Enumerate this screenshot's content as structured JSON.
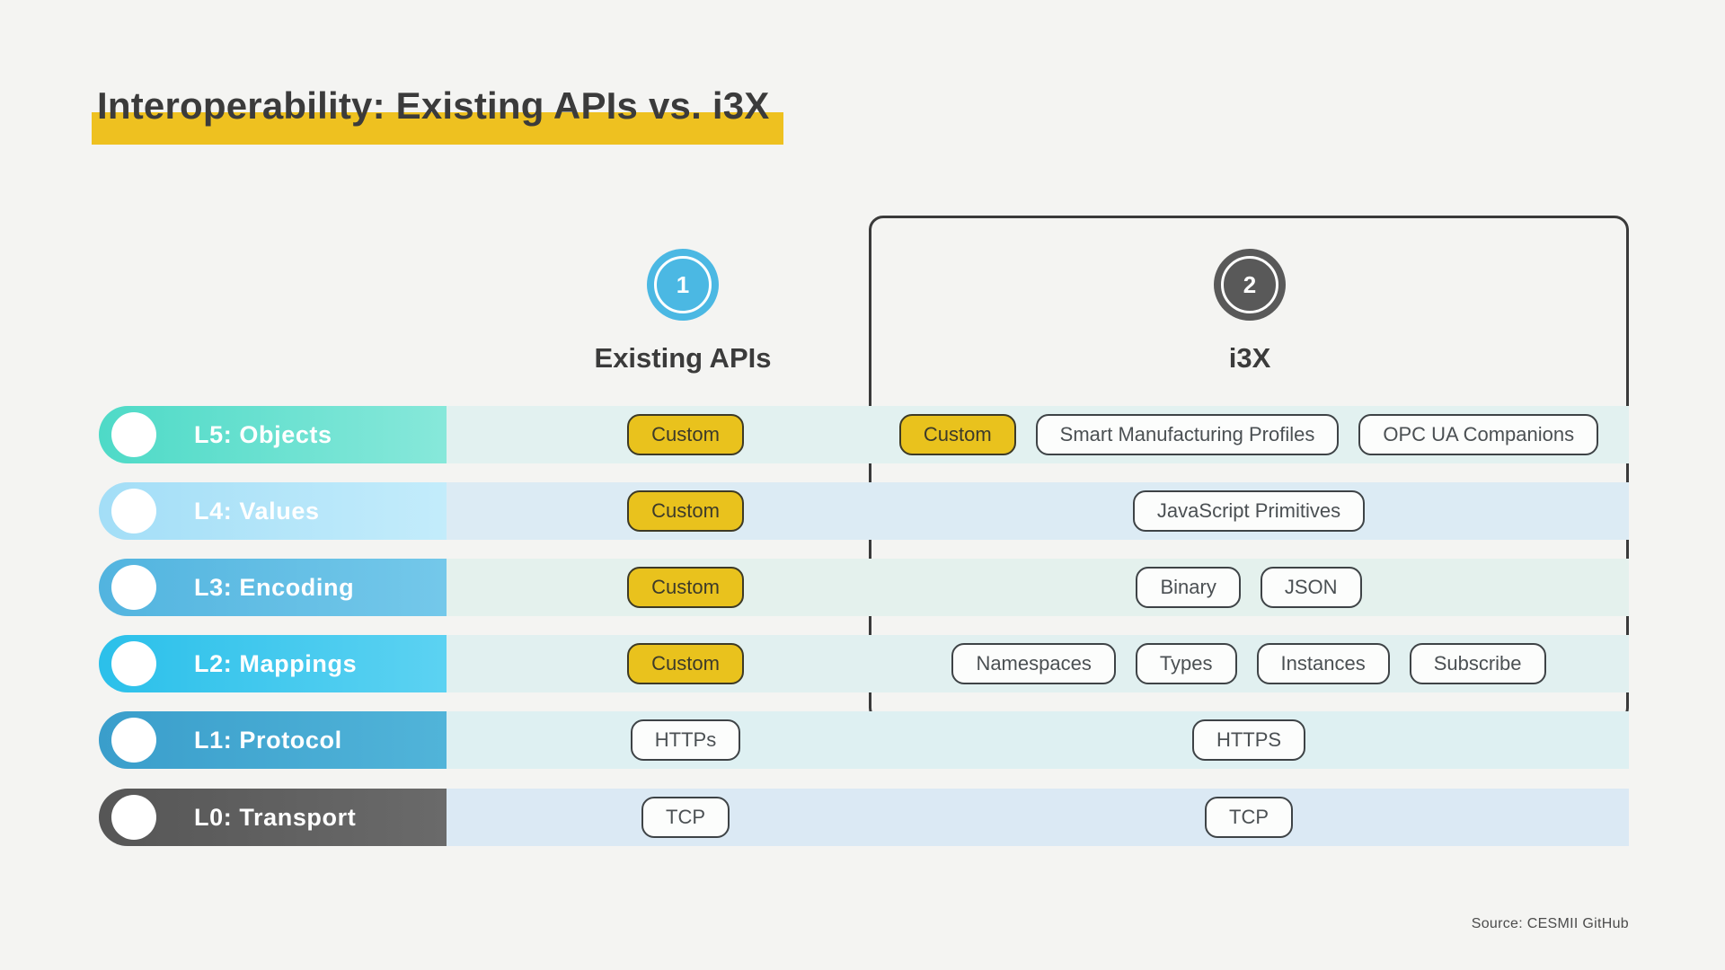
{
  "title": {
    "text": "Interoperability: Existing APIs vs. i3X"
  },
  "columns": [
    {
      "number": "1",
      "label": "Existing APIs"
    },
    {
      "number": "2",
      "label": "i3X"
    }
  ],
  "rows": [
    {
      "label": "L5: Objects",
      "existing": [
        {
          "label": "Custom",
          "highlighted": true
        }
      ],
      "i3x": [
        {
          "label": "Custom",
          "highlighted": true
        },
        {
          "label": "Smart Manufacturing Profiles",
          "highlighted": false
        },
        {
          "label": "OPC UA Companions",
          "highlighted": false
        }
      ]
    },
    {
      "label": "L4: Values",
      "existing": [
        {
          "label": "Custom",
          "highlighted": true
        }
      ],
      "i3x": [
        {
          "label": "JavaScript Primitives",
          "highlighted": false
        }
      ]
    },
    {
      "label": "L3: Encoding",
      "existing": [
        {
          "label": "Custom",
          "highlighted": true
        }
      ],
      "i3x": [
        {
          "label": "Binary",
          "highlighted": false
        },
        {
          "label": "JSON",
          "highlighted": false
        }
      ]
    },
    {
      "label": "L2: Mappings",
      "existing": [
        {
          "label": "Custom",
          "highlighted": true
        }
      ],
      "i3x": [
        {
          "label": "Namespaces",
          "highlighted": false
        },
        {
          "label": "Types",
          "highlighted": false
        },
        {
          "label": "Instances",
          "highlighted": false
        },
        {
          "label": "Subscribe",
          "highlighted": false
        }
      ]
    },
    {
      "label": "L1: Protocol",
      "existing": [
        {
          "label": "HTTPs",
          "highlighted": false
        }
      ],
      "i3x": [
        {
          "label": "HTTPS",
          "highlighted": false
        }
      ]
    },
    {
      "label": "L0: Transport",
      "existing": [
        {
          "label": "TCP",
          "highlighted": false
        }
      ],
      "i3x": [
        {
          "label": "TCP",
          "highlighted": false
        }
      ]
    }
  ],
  "source": "Source: CESMII GitHub",
  "colors": {
    "background": "#f4f4f2",
    "title_text": "#3b3b3b",
    "title_highlight": "#eec120",
    "pill_highlight": "#e9c21d",
    "pill_border": "#3e4346",
    "circle_1": "#4bb8e3",
    "circle_2": "#595959",
    "i3x_box_border": "#3a3a3a",
    "layer_label_colors": [
      "#4edac7",
      "#a3def7",
      "#52b4df",
      "#2bc0ea",
      "#3a9ecb",
      "#565656"
    ],
    "row_band_colors": [
      "#e2f1f0",
      "#dcebf4",
      "#e4f1ed",
      "#e1f0f0",
      "#def0f2",
      "#dbe9f4"
    ]
  }
}
